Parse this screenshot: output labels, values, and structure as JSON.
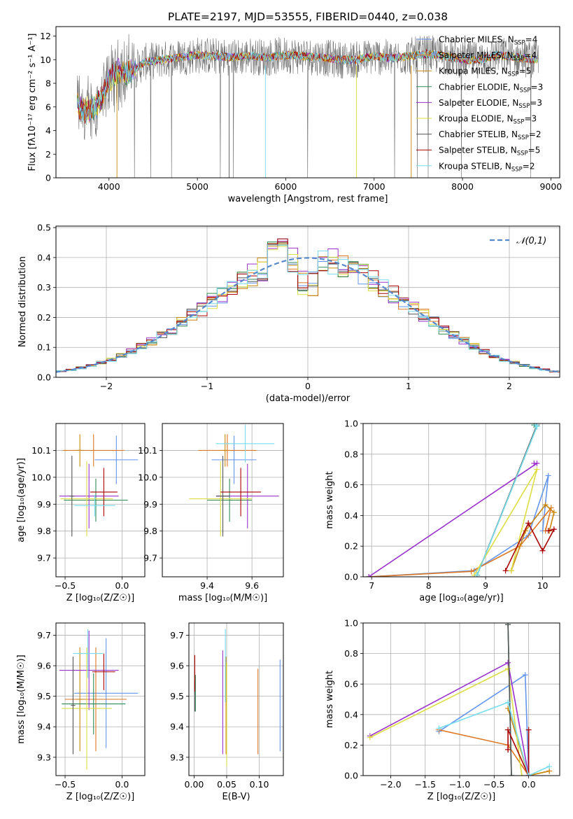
{
  "figure_title": "PLATE=2197, MJD=53555, FIBERID=0440, z=0.038",
  "colors": [
    "#6495ed",
    "#dd7722",
    "#c8860b",
    "#2e8b57",
    "#9932cc",
    "#dddd44",
    "#555555",
    "#aa0000",
    "#77ddee"
  ],
  "chart_data": [
    {
      "id": "spectrum",
      "type": "line",
      "title": "PLATE=2197, MJD=53555, FIBERID=0440, z=0.038",
      "xlabel": "wavelength [Angstrom, rest frame]",
      "ylabel": "Flux [fλ10⁻¹⁷ erg cm⁻² s⁻¹ A⁻¹]",
      "xlim": [
        3400,
        9100
      ],
      "ylim": [
        0,
        12.8
      ],
      "xticks": [
        "4000",
        "5000",
        "6000",
        "7000",
        "8000",
        "9000"
      ],
      "yticks": [
        "0",
        "2",
        "4",
        "6",
        "8",
        "10",
        "12"
      ],
      "grid": false,
      "legend_position": "top-right",
      "legend": [
        "Chabrier MILES, N_SSP=4",
        "Salpeter MILES, N_SSP=4",
        "Kroupa MILES, N_SSP=5",
        "Chabrier ELODIE, N_SSP=3",
        "Salpeter ELODIE, N_SSP=3",
        "Kroupa ELODIE, N_SSP=3",
        "Chabrier STELIB, N_SSP=2",
        "Salpeter STELIB, N_SSP=5",
        "Kroupa STELIB, N_SSP=2"
      ],
      "continuum": {
        "x": [
          3640,
          3700,
          3800,
          3900,
          3950,
          4000,
          4100,
          4200,
          4300,
          4400,
          4600,
          4800,
          5000,
          5200,
          5400,
          5600,
          5800,
          6000,
          6200,
          6400,
          6600,
          6800,
          7000,
          7200,
          7400,
          7600,
          7800,
          8000,
          8200,
          8400,
          8600,
          8800
        ],
        "y": [
          6.4,
          5.6,
          5.8,
          6.5,
          7.2,
          8.3,
          9.0,
          8.9,
          9.2,
          9.8,
          10.0,
          10.2,
          10.4,
          10.3,
          10.2,
          10.3,
          10.2,
          10.4,
          10.3,
          10.2,
          10.0,
          10.0,
          10.3,
          10.1,
          10.3,
          10.5,
          10.3,
          10.0,
          10.0,
          10.4,
          10.2,
          10.0
        ]
      }
    },
    {
      "id": "residuals",
      "type": "histogram",
      "xlabel": "(data-model)/error",
      "ylabel": "Normed distribution",
      "xlim": [
        -2.5,
        2.5
      ],
      "ylim": [
        0,
        0.505
      ],
      "xticks": [
        "−2",
        "−1",
        "0",
        "1",
        "2"
      ],
      "yticks": [
        "0.0",
        "0.1",
        "0.2",
        "0.3",
        "0.4",
        "0.5"
      ],
      "grid": true,
      "legend_position": "top-right",
      "legend": [
        "𝒩(0,1)"
      ],
      "bin_width": 0.1
    },
    {
      "id": "age-vs-Z",
      "type": "errorbar",
      "xlabel": "Z [log₁₀(Z/Z☉)]",
      "ylabel": "age  [log₁₀(age/yr)]",
      "xlim": [
        -0.58,
        0.2
      ],
      "ylim": [
        9.63,
        10.2
      ],
      "xticks": [
        "−0.5",
        "0.0"
      ],
      "yticks": [
        "9.7",
        "9.8",
        "9.9",
        "10.0",
        "10.1"
      ],
      "grid": true,
      "points": [
        {
          "x": -0.05,
          "xerr": 0.19,
          "y": 10.065,
          "yerr": 0.09
        },
        {
          "x": -0.25,
          "xerr": 0.27,
          "y": 10.1,
          "yerr": 0.06
        },
        {
          "x": -0.37,
          "xerr": 0.03,
          "y": 10.1,
          "yerr": 0.06
        },
        {
          "x": -0.23,
          "xerr": 0.28,
          "y": 9.915,
          "yerr": 0.08
        },
        {
          "x": -0.29,
          "xerr": 0.26,
          "y": 9.93,
          "yerr": 0.12
        },
        {
          "x": -0.31,
          "xerr": 0.23,
          "y": 9.92,
          "yerr": 0.14
        },
        {
          "x": -0.44,
          "xerr": 0.02,
          "y": 9.93,
          "yerr": 0.15
        },
        {
          "x": -0.16,
          "xerr": 0.12,
          "y": 9.945,
          "yerr": 0.09
        },
        {
          "x": -0.24,
          "xerr": 0.18,
          "y": 9.895,
          "yerr": 0.04
        }
      ]
    },
    {
      "id": "age-vs-mass",
      "type": "errorbar",
      "xlabel": "mass [log₁₀(M/M☉)]",
      "ylabel": "",
      "xlim": [
        9.2,
        9.74
      ],
      "ylim": [
        9.63,
        10.2
      ],
      "xticks": [
        "9.4",
        "9.6"
      ],
      "yticks": [
        "9.7",
        "9.8",
        "9.9",
        "10.0",
        "10.1"
      ],
      "grid": true,
      "points": [
        {
          "x": 9.52,
          "xerr": 0.1,
          "y": 10.065,
          "yerr": 0.09
        },
        {
          "x": 9.49,
          "xerr": 0.13,
          "y": 10.1,
          "yerr": 0.06
        },
        {
          "x": 9.48,
          "xerr": 0.01,
          "y": 10.1,
          "yerr": 0.06
        },
        {
          "x": 9.5,
          "xerr": 0.1,
          "y": 9.915,
          "yerr": 0.08
        },
        {
          "x": 9.58,
          "xerr": 0.14,
          "y": 9.93,
          "yerr": 0.12
        },
        {
          "x": 9.46,
          "xerr": 0.14,
          "y": 9.92,
          "yerr": 0.14
        },
        {
          "x": 9.47,
          "xerr": 0.03,
          "y": 9.93,
          "yerr": 0.15
        },
        {
          "x": 9.55,
          "xerr": 0.09,
          "y": 9.945,
          "yerr": 0.09
        },
        {
          "x": 9.57,
          "xerr": 0.13,
          "y": 10.125,
          "yerr": 0.07
        }
      ]
    },
    {
      "id": "weight-vs-age",
      "type": "line",
      "xlabel": "age  [log₁₀(age/yr)]",
      "ylabel": "mass weight",
      "xlim": [
        6.85,
        10.3
      ],
      "ylim": [
        0,
        1
      ],
      "xticks": [
        "7",
        "8",
        "9",
        "10"
      ],
      "yticks": [
        "0.0",
        "0.2",
        "0.4",
        "0.6",
        "0.8",
        "1.0"
      ],
      "grid": true,
      "series": [
        {
          "x": [
            6.95,
            8.8,
            9.75,
            10.1,
            10.0
          ],
          "y": [
            0,
            0.04,
            0.27,
            0.66,
            0.3
          ]
        },
        {
          "x": [
            6.95,
            8.75,
            9.6,
            10.15,
            10.05
          ],
          "y": [
            0,
            0.035,
            0.2,
            0.45,
            0.3
          ]
        },
        {
          "x": [
            9.45,
            9.7,
            10.05,
            10.2,
            10.12
          ],
          "y": [
            0.04,
            0.3,
            0.47,
            0.42,
            0.3
          ]
        },
        {
          "x": [
            8.85,
            9.9,
            9.85
          ],
          "y": [
            0.01,
            0.98,
            0.99
          ]
        },
        {
          "x": [
            6.95,
            9.9,
            9.85
          ],
          "y": [
            0,
            0.74,
            0.74
          ]
        },
        {
          "x": [
            8.8,
            9.9,
            9.45
          ],
          "y": [
            0.01,
            0.7,
            0.04
          ]
        },
        {
          "x": [
            8.85,
            9.9
          ],
          "y": [
            0.01,
            0.99
          ]
        },
        {
          "x": [
            9.35,
            9.75,
            10.0,
            10.2,
            10.1
          ],
          "y": [
            0.04,
            0.35,
            0.17,
            0.31,
            0.3
          ]
        },
        {
          "x": [
            8.85,
            9.9,
            9.88
          ],
          "y": [
            0.01,
            0.98,
            0.99
          ]
        }
      ]
    },
    {
      "id": "mass-vs-Z",
      "type": "errorbar",
      "xlabel": "Z [log₁₀(Z/Z☉)]",
      "ylabel": "mass [log₁₀(M/M☉)]",
      "xlim": [
        -0.58,
        0.2
      ],
      "ylim": [
        9.24,
        9.74
      ],
      "xticks": [
        "−0.5",
        "0.0"
      ],
      "yticks": [
        "9.3",
        "9.4",
        "9.5",
        "9.6",
        "9.7"
      ],
      "grid": true,
      "points": [
        {
          "x": -0.14,
          "xerr": 0.28,
          "y": 9.51,
          "yerr": 0.18
        },
        {
          "x": -0.23,
          "xerr": 0.27,
          "y": 9.49,
          "yerr": 0.17
        },
        {
          "x": -0.37,
          "xerr": 0.03,
          "y": 9.49,
          "yerr": 0.17
        },
        {
          "x": -0.25,
          "xerr": 0.28,
          "y": 9.475,
          "yerr": 0.1
        },
        {
          "x": -0.29,
          "xerr": 0.26,
          "y": 9.585,
          "yerr": 0.13
        },
        {
          "x": -0.31,
          "xerr": 0.22,
          "y": 9.46,
          "yerr": 0.2
        },
        {
          "x": -0.43,
          "xerr": 0.02,
          "y": 9.47,
          "yerr": 0.16
        },
        {
          "x": -0.16,
          "xerr": 0.1,
          "y": 9.58,
          "yerr": 0.06
        },
        {
          "x": -0.3,
          "xerr": 0.13,
          "y": 9.64,
          "yerr": 0.08
        }
      ]
    },
    {
      "id": "mass-vs-EBV",
      "type": "errorbar",
      "xlabel": "E(B-V)",
      "ylabel": "",
      "xlim": [
        -0.008,
        0.137
      ],
      "ylim": [
        9.24,
        9.74
      ],
      "xticks": [
        "0.00",
        "0.05",
        "0.10"
      ],
      "yticks": [
        "9.3",
        "9.4",
        "9.5",
        "9.6",
        "9.7"
      ],
      "grid": true,
      "points": [
        {
          "x": 0.132,
          "y": 9.47,
          "yerr": 0.15
        },
        {
          "x": 0.098,
          "y": 9.45,
          "yerr": 0.14
        },
        {
          "x": 0.049,
          "y": 9.47,
          "yerr": 0.16
        },
        {
          "x": 0.002,
          "y": 9.51,
          "yerr": 0.06
        },
        {
          "x": 0.044,
          "y": 9.48,
          "yerr": 0.17
        },
        {
          "x": 0.05,
          "y": 9.44,
          "yerr": 0.17
        },
        {
          "x": 0.001,
          "y": 9.5,
          "yerr": 0.05
        },
        {
          "x": 0.001,
          "y": 9.575,
          "yerr": 0.06
        },
        {
          "x": 0.048,
          "y": 9.6,
          "yerr": 0.12
        }
      ]
    },
    {
      "id": "weight-vs-Z",
      "type": "line",
      "xlabel": "Z [log₁₀(Z/Z☉)]",
      "ylabel": "mass weight",
      "xlim": [
        -2.4,
        0.45
      ],
      "ylim": [
        0,
        1
      ],
      "xticks": [
        "−2.0",
        "−1.5",
        "−1.0",
        "−0.5",
        "0.0"
      ],
      "yticks": [
        "0.0",
        "0.2",
        "0.4",
        "0.6",
        "0.8",
        "1.0"
      ],
      "grid": true,
      "series": [
        {
          "x": [
            -1.3,
            -0.05,
            0.0
          ],
          "y": [
            0.29,
            0.66,
            0.0
          ]
        },
        {
          "x": [
            -1.3,
            -0.3,
            0.0,
            0.3
          ],
          "y": [
            0.3,
            0.2,
            0.0,
            0.03
          ]
        },
        {
          "x": [
            -0.3,
            0.0,
            0.3
          ],
          "y": [
            0.44,
            0.0,
            0.03
          ]
        },
        {
          "x": [
            -0.3,
            -0.25
          ],
          "y": [
            0.99,
            0.0
          ]
        },
        {
          "x": [
            -2.3,
            -0.3,
            0.0
          ],
          "y": [
            0.26,
            0.74,
            0.0
          ]
        },
        {
          "x": [
            -2.3,
            -0.3,
            -0.1
          ],
          "y": [
            0.25,
            0.7,
            0.0
          ]
        },
        {
          "x": [
            -0.3,
            -0.25
          ],
          "y": [
            0.99,
            0.0
          ]
        },
        {
          "x": [
            -0.3,
            -0.3,
            -0.3,
            0.0,
            0.0
          ],
          "y": [
            0.17,
            0.17,
            0.3,
            0.0,
            0.3
          ]
        },
        {
          "x": [
            -1.3,
            -0.3,
            0.0,
            0.3
          ],
          "y": [
            0.31,
            0.48,
            0.0,
            0.06
          ]
        }
      ]
    }
  ]
}
